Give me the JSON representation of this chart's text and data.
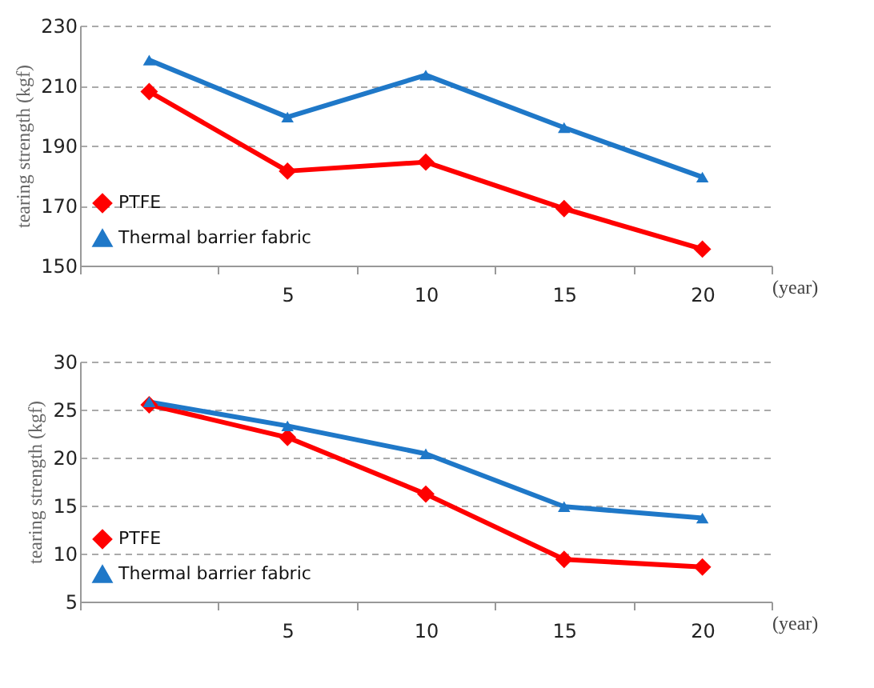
{
  "chart_data": [
    {
      "type": "line",
      "categories": [
        null,
        "5",
        "10",
        "15",
        "20"
      ],
      "xlabel": "(year)",
      "ylabel": "tearing strength (kgf)",
      "ylim": [
        150,
        230
      ],
      "yticks": [
        150,
        170,
        190,
        210,
        230
      ],
      "grid": "y",
      "legend": "bottom left",
      "series": [
        {
          "name": "PTFE",
          "color": "#ff0000",
          "marker": "diamond",
          "values": [
            208,
            181.5,
            184.5,
            169,
            155.5
          ]
        },
        {
          "name": "Thermal barrier fabric",
          "color": "#1f78c8",
          "marker": "triangle",
          "values": [
            218.5,
            199.5,
            213.5,
            196,
            179.5
          ]
        }
      ]
    },
    {
      "type": "line",
      "categories": [
        null,
        "5",
        "10",
        "15",
        "20"
      ],
      "xlabel": "(year)",
      "ylabel": "tearing strength (kgf)",
      "ylim": [
        5,
        30
      ],
      "yticks": [
        5,
        10,
        15,
        20,
        25,
        30
      ],
      "grid": "y",
      "legend": "bottom left",
      "series": [
        {
          "name": "PTFE",
          "color": "#ff0000",
          "marker": "diamond",
          "values": [
            25.5,
            22.1,
            16.2,
            9.4,
            8.6
          ]
        },
        {
          "name": "Thermal barrier fabric",
          "color": "#1f78c8",
          "marker": "triangle",
          "values": [
            25.8,
            23.3,
            20.4,
            14.9,
            13.7
          ]
        }
      ]
    }
  ]
}
